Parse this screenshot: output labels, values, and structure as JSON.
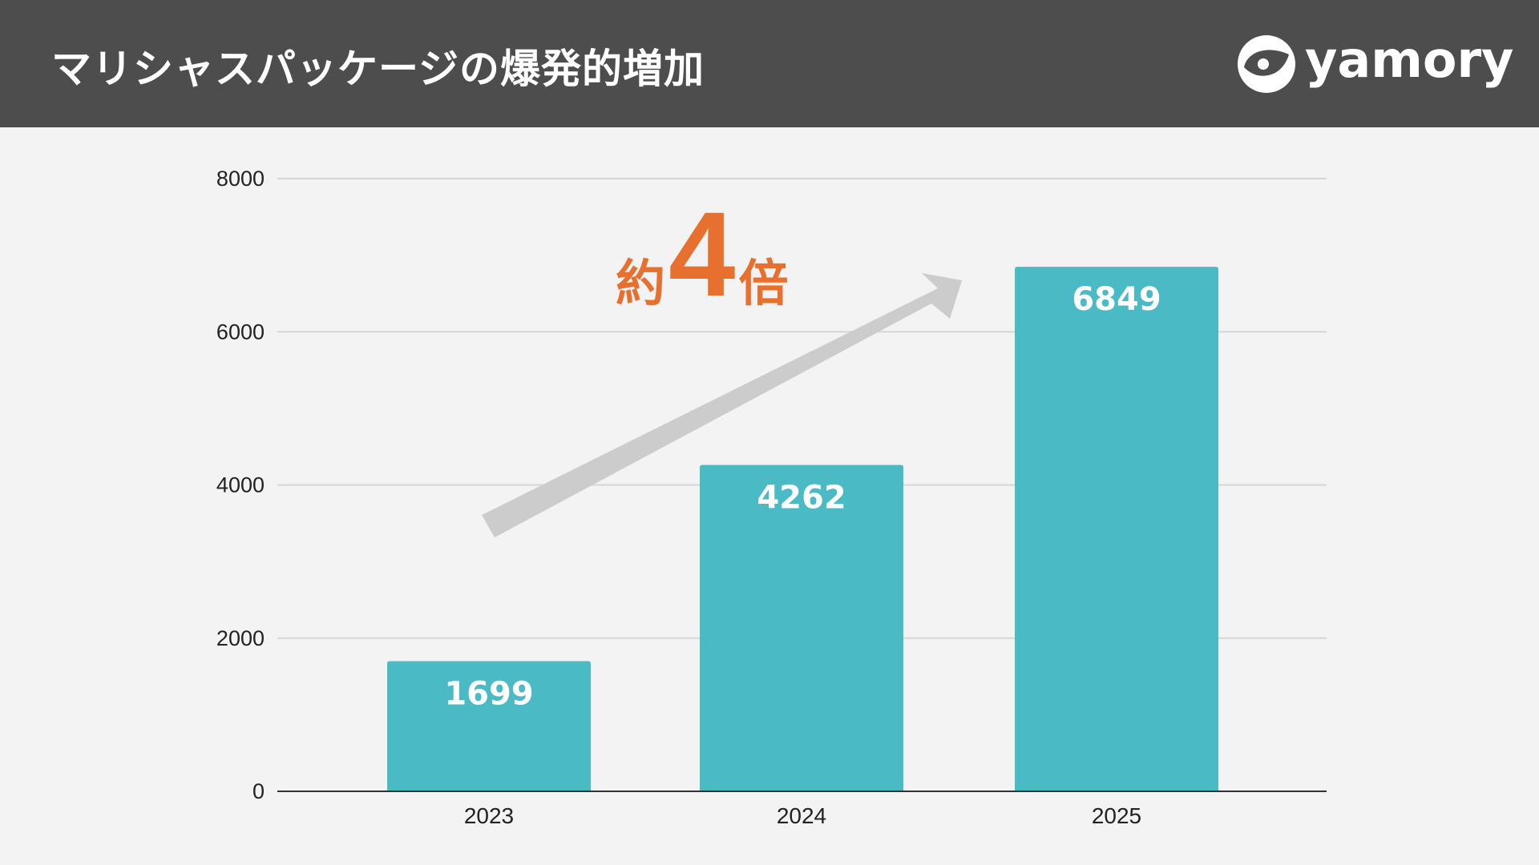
{
  "header": {
    "title": "マリシャスパッケージの爆発的増加",
    "logo_text": "yamory"
  },
  "annotation": {
    "prefix": "約",
    "number": "4",
    "suffix": "倍",
    "color": "#e8702f"
  },
  "colors": {
    "bar": "#4abac5",
    "header_bg": "#4d4d4d",
    "arrow": "#cccccc"
  },
  "chart_data": {
    "type": "bar",
    "categories": [
      "2023",
      "2024",
      "2025"
    ],
    "values": [
      1699,
      4262,
      6849
    ],
    "data_labels": [
      "1699",
      "4262",
      "6849"
    ],
    "title": "",
    "xlabel": "",
    "ylabel": "",
    "ylim": [
      0,
      8000
    ],
    "yticks": [
      "0",
      "2000",
      "4000",
      "6000",
      "8000"
    ],
    "grid": true,
    "legend": "none"
  }
}
